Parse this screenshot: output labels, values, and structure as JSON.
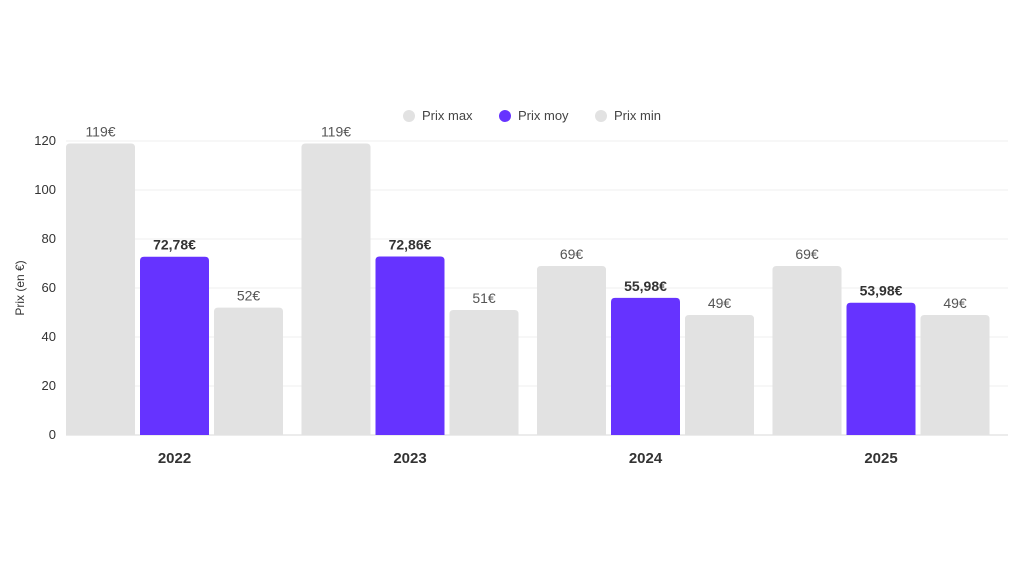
{
  "chart_data": {
    "type": "bar",
    "title": "",
    "xlabel": "",
    "ylabel": "Prix (en €)",
    "ylim": [
      0,
      120
    ],
    "yticks": [
      0,
      20,
      40,
      60,
      80,
      100,
      120
    ],
    "grid": true,
    "legend_position": "top-center",
    "categories": [
      "2022",
      "2023",
      "2024",
      "2025"
    ],
    "series": [
      {
        "name": "Prix max",
        "color": "#e2e2e2",
        "values": [
          119,
          119,
          69,
          69
        ],
        "labels": [
          "119€",
          "119€",
          "69€",
          "69€"
        ],
        "label_bold": false
      },
      {
        "name": "Prix moy",
        "color": "#6633ff",
        "values": [
          72.78,
          72.86,
          55.98,
          53.98
        ],
        "labels": [
          "72,78€",
          "72,86€",
          "55,98€",
          "53,98€"
        ],
        "label_bold": true
      },
      {
        "name": "Prix min",
        "color": "#e2e2e2",
        "values": [
          52,
          51,
          49,
          49
        ],
        "labels": [
          "52€",
          "51€",
          "49€",
          "49€"
        ],
        "label_bold": false
      }
    ]
  }
}
